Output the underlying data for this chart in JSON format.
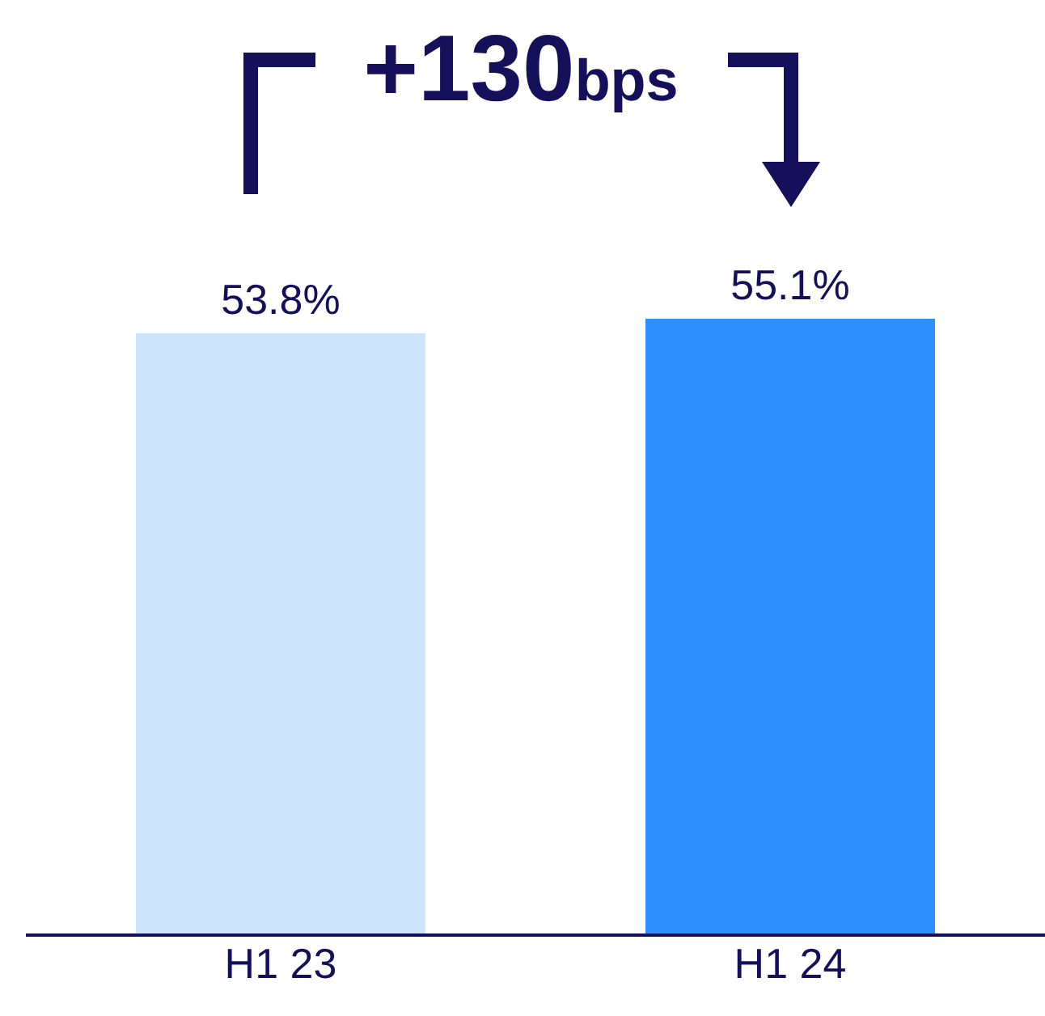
{
  "chart_data": {
    "type": "bar",
    "categories": [
      "H1 23",
      "H1 24"
    ],
    "values": [
      53.8,
      55.1
    ],
    "colors": [
      "#cce4fc",
      "#2e90fe"
    ],
    "tick_labels": "x",
    "data_labels": true,
    "value_labels": [
      "53.8%",
      "55.1%"
    ],
    "annotations": [
      "+130bps"
    ],
    "grid": false,
    "legend": false
  }
}
